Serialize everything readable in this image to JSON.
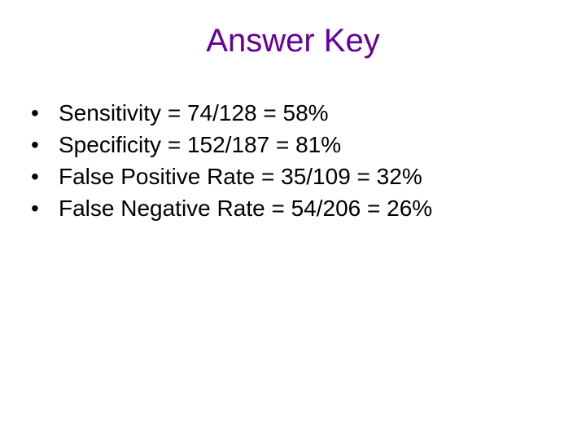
{
  "title": "Answer Key",
  "title_color": "#660099",
  "title_fontsize": 40,
  "text_color": "#000000",
  "text_fontsize": 28,
  "background_color": "#ffffff",
  "bullets": [
    {
      "text": "Sensitivity = 74/128 = 58%"
    },
    {
      "text": "Specificity = 152/187 = 81%"
    },
    {
      "text": "False Positive Rate = 35/109 = 32%"
    },
    {
      "text": "False Negative Rate = 54/206 = 26%"
    }
  ]
}
